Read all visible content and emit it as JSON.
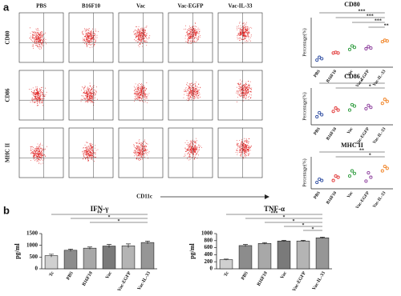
{
  "panel_a_label": "a",
  "panel_b_label": "b",
  "flow": {
    "groups": [
      "PBS",
      "B16F10",
      "Vac",
      "Vac-EGFP",
      "Vac-IL-33"
    ],
    "markers": [
      "CD80",
      "CD86",
      "MHC II"
    ],
    "x_axis_label": "CD11c"
  },
  "chart_data": [
    {
      "type": "scatter",
      "title": "CD80",
      "y_label": "Percentage(%)",
      "categories": [
        "PBS",
        "B16F10",
        "Vac",
        "Vac-EGFP",
        "Vac-IL-33"
      ],
      "colors": [
        "#2b4aa0",
        "#e03030",
        "#2a9a3a",
        "#8a3a9a",
        "#f08020"
      ],
      "ylim": [
        30,
        100
      ],
      "values": [
        [
          40,
          44,
          42
        ],
        [
          50,
          51,
          50
        ],
        [
          55,
          60,
          58
        ],
        [
          56,
          59,
          57
        ],
        [
          66,
          68,
          67
        ]
      ],
      "significance": [
        {
          "label": "***",
          "pair": [
            0,
            4
          ]
        },
        {
          "label": "***",
          "pair": [
            1,
            4
          ]
        },
        {
          "label": "***",
          "pair": [
            2,
            4
          ]
        },
        {
          "label": "**",
          "pair": [
            3,
            4
          ]
        }
      ]
    },
    {
      "type": "scatter",
      "title": "CD86",
      "y_label": "Percentage(%)",
      "categories": [
        "PBS",
        "B16F10",
        "Vac",
        "Vac-EGFP",
        "Vac-IL-33"
      ],
      "colors": [
        "#2b4aa0",
        "#e03030",
        "#2a9a3a",
        "#8a3a9a",
        "#f08020"
      ],
      "ylim": [
        20,
        75
      ],
      "values": [
        [
          32,
          38,
          35
        ],
        [
          40,
          45,
          42
        ],
        [
          42,
          50,
          48
        ],
        [
          44,
          49,
          46
        ],
        [
          52,
          58,
          55
        ]
      ],
      "significance": [
        {
          "label": "*",
          "pair": [
            0,
            4
          ]
        },
        {
          "label": "*",
          "pair": [
            1,
            4
          ]
        }
      ]
    },
    {
      "type": "scatter",
      "title": "MHC II",
      "y_label": "Percentage(%)",
      "categories": [
        "PBS",
        "B16F10",
        "Vac",
        "Vac-EGFP",
        "Vac-IL-33"
      ],
      "colors": [
        "#2b4aa0",
        "#e03030",
        "#2a9a3a",
        "#8a3a9a",
        "#f08020"
      ],
      "ylim": [
        20,
        70
      ],
      "values": [
        [
          30,
          35,
          33
        ],
        [
          33,
          40,
          38
        ],
        [
          40,
          48,
          44
        ],
        [
          32,
          45,
          38
        ],
        [
          48,
          55,
          52
        ]
      ],
      "significance": [
        {
          "label": "**",
          "pair": [
            0,
            4
          ]
        },
        {
          "label": "*",
          "pair": [
            1,
            4
          ]
        }
      ]
    },
    {
      "type": "bar",
      "title": "IFN-γ",
      "y_label": "pg/ml",
      "categories": [
        "Tc",
        "PBS",
        "B16F10",
        "Vac",
        "Vac-EGFP",
        "Vac-IL-33"
      ],
      "colors": [
        "#d0d0d0",
        "#8c8c8c",
        "#a8a8a8",
        "#7a7a7a",
        "#b4b4b4",
        "#969696"
      ],
      "values": [
        560,
        790,
        880,
        970,
        980,
        1120
      ],
      "errors": [
        60,
        50,
        50,
        70,
        80,
        60
      ],
      "ylim": [
        0,
        1500
      ],
      "yticks": [
        0,
        500,
        1000,
        1500
      ],
      "significance": [
        {
          "label": "**",
          "pair": [
            0,
            5
          ]
        },
        {
          "label": "*",
          "pair": [
            1,
            5
          ]
        },
        {
          "label": "*",
          "pair": [
            2,
            5
          ]
        }
      ]
    },
    {
      "type": "bar",
      "title": "TNF-α",
      "y_label": "pg/ml",
      "categories": [
        "Tc",
        "PBS",
        "B16F10",
        "Vac",
        "Vac-EGFP",
        "Vac-IL-33"
      ],
      "colors": [
        "#d0d0d0",
        "#8c8c8c",
        "#a8a8a8",
        "#7a7a7a",
        "#b4b4b4",
        "#969696"
      ],
      "values": [
        260,
        660,
        720,
        790,
        790,
        880
      ],
      "errors": [
        15,
        30,
        25,
        20,
        20,
        20
      ],
      "ylim": [
        0,
        1000
      ],
      "yticks": [
        0,
        200,
        400,
        600,
        800,
        1000
      ],
      "significance": [
        {
          "label": "***",
          "pair": [
            0,
            5
          ]
        },
        {
          "label": "*",
          "pair": [
            1,
            5
          ]
        },
        {
          "label": "*",
          "pair": [
            2,
            5
          ]
        },
        {
          "label": "*",
          "pair": [
            3,
            5
          ]
        },
        {
          "label": "*",
          "pair": [
            4,
            5
          ]
        }
      ]
    }
  ]
}
